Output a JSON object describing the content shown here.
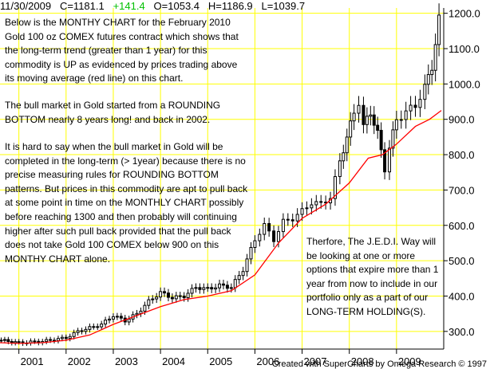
{
  "header": {
    "date": "11/30/2009",
    "close": "C=1181.1",
    "change": "+141.4",
    "open": "O=1053.4",
    "high": "H=1186.9",
    "low": "L=1039.7"
  },
  "notes": {
    "para1": "Below is the MONTHY CHART for the February 2010 Gold 100 oz COMEX futures contract which shows that the long-term trend (greater than 1 year) for this commodity is UP as evidenced by prices trading above its moving average (red line) on this chart.",
    "para2": "The bull market in Gold started from a ROUNDING BOTTOM nearly 8 years long!  and back in 2002.",
    "para3": "It is hard to say when the bull market in Gold will be completed in the long-term (> 1year) because there is no precise measuring rules for ROUNDING BOTTOM patterns.  But prices in this commodity are apt to pull back at some point in time on the MONTHLY CHART possibly before reaching 1300 and then probably will continuing higher after such pull back provided that the pull back does not take Gold 100 COMEX below 900 on this MONTHY CHART alone.",
    "para4": "Therfore, The J.E.D.I. Way will be looking at one or more options that expire more than 1 year from now to include in our portfolio only as a part of our LONG-TERM HOLDING(S)."
  },
  "credit": "Created with SuperCharts by Omega Research © 1997",
  "colors": {
    "grid": "#ffff00",
    "bars": "#000000",
    "ma": "#ff0000",
    "change": "#00c000"
  },
  "chart_data": {
    "type": "line",
    "title": "",
    "xlabel": "",
    "ylabel": "",
    "x_ticks": [
      "2001",
      "2002",
      "2003",
      "2004",
      "2005",
      "2006",
      "2007",
      "2008",
      "2009"
    ],
    "y_ticks": [
      "300.0",
      "400.0",
      "500.0",
      "600.0",
      "700.0",
      "800.0",
      "900.0",
      "1000.0",
      "1100.0",
      "1200.0"
    ],
    "ylim": [
      250,
      1215
    ],
    "xlim": [
      2000.6,
      2010.0
    ],
    "grid": true,
    "series": [
      {
        "kind": "monthly-close",
        "x": [
          2000.625,
          2001.0,
          2001.5,
          2002.0,
          2002.25,
          2002.5,
          2002.75,
          2003.0,
          2003.25,
          2003.5,
          2003.75,
          2004.0,
          2004.25,
          2004.5,
          2004.75,
          2005.0,
          2005.25,
          2005.5,
          2005.75,
          2006.0,
          2006.2,
          2006.4,
          2006.6,
          2006.8,
          2007.0,
          2007.2,
          2007.4,
          2007.6,
          2007.8,
          2007.95,
          2008.1,
          2008.2,
          2008.3,
          2008.45,
          2008.6,
          2008.75,
          2008.85,
          2009.0,
          2009.2,
          2009.4,
          2009.6,
          2009.75,
          2009.9
        ],
        "y": [
          275,
          268,
          272,
          282,
          300,
          310,
          320,
          345,
          330,
          350,
          385,
          410,
          395,
          400,
          425,
          420,
          430,
          425,
          475,
          560,
          600,
          560,
          610,
          620,
          640,
          665,
          660,
          680,
          780,
          850,
          920,
          950,
          880,
          920,
          860,
          760,
          820,
          900,
          920,
          940,
          990,
          1050,
          1181
        ]
      },
      {
        "kind": "moving-average",
        "x": [
          2000.6,
          2001.0,
          2001.5,
          2002.0,
          2002.5,
          2003.0,
          2003.5,
          2004.0,
          2004.5,
          2005.0,
          2005.5,
          2006.0,
          2006.5,
          2007.0,
          2007.5,
          2008.0,
          2008.4,
          2008.7,
          2009.0,
          2009.4,
          2009.7,
          2009.95
        ],
        "y": [
          268,
          266,
          268,
          275,
          290,
          320,
          345,
          370,
          390,
          400,
          415,
          460,
          550,
          620,
          660,
          720,
          790,
          800,
          830,
          880,
          900,
          925
        ]
      }
    ]
  }
}
